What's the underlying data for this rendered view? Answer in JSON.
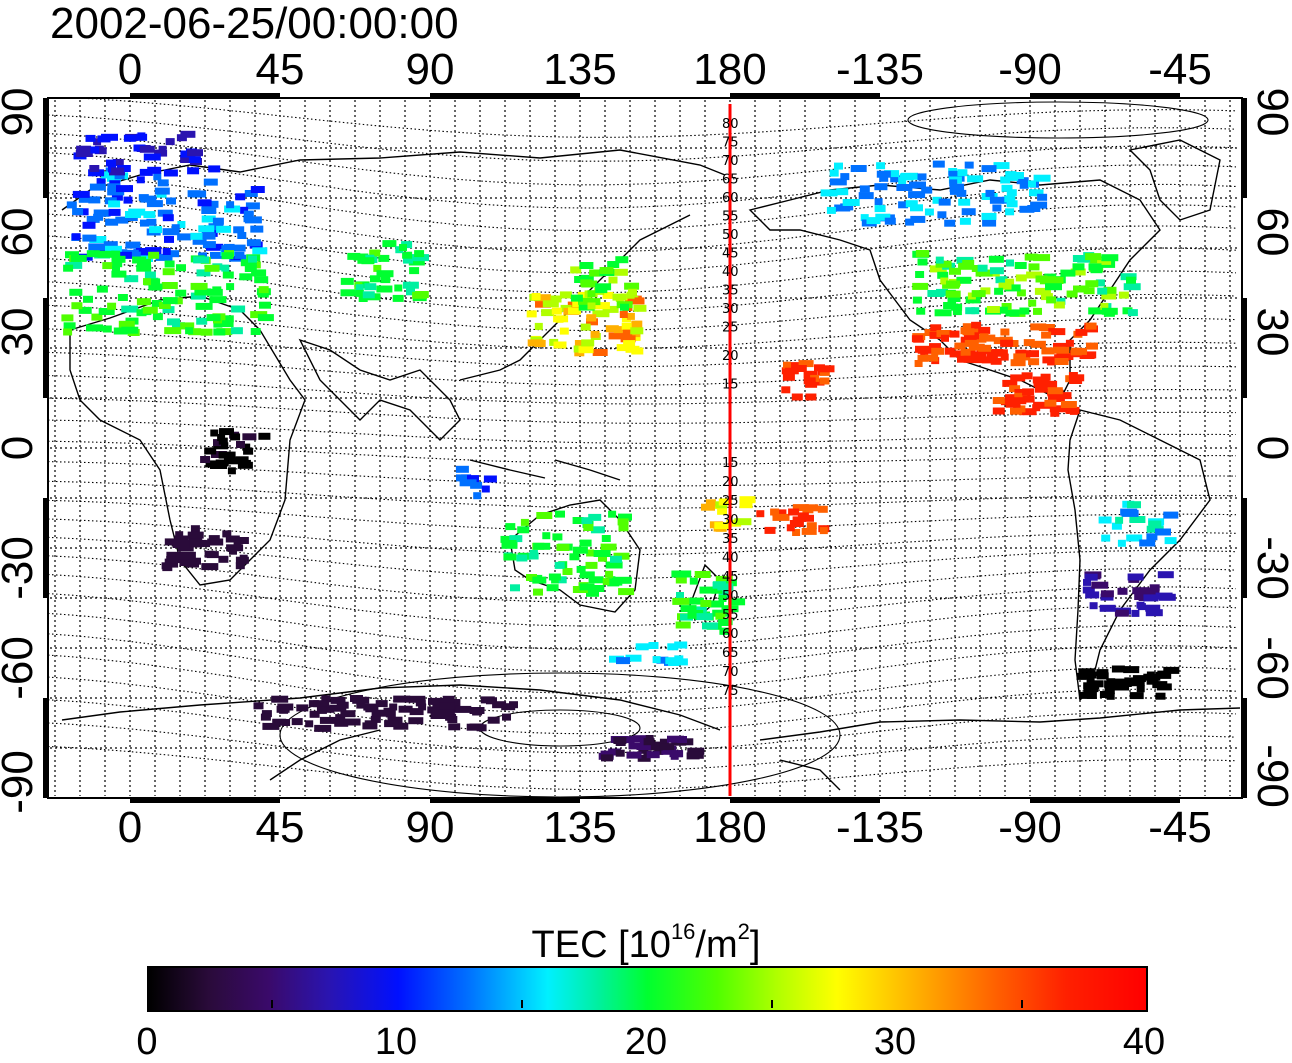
{
  "title": "2002-06-25/00:00:00",
  "axes": {
    "lon_ticks_top": [
      "0",
      "45",
      "90",
      "135",
      "180",
      "-135",
      "-90",
      "-45"
    ],
    "lon_ticks_bottom": [
      "0",
      "45",
      "90",
      "135",
      "180",
      "-135",
      "-90",
      "-45"
    ],
    "lat_ticks_left": [
      "90",
      "60",
      "30",
      "0",
      "-30",
      "-60",
      "-90"
    ],
    "lat_ticks_right": [
      "90",
      "60",
      "30",
      "0",
      "-30",
      "-60",
      "-90"
    ]
  },
  "meridian_labels": {
    "north": [
      "80",
      "75",
      "70",
      "65",
      "60",
      "55",
      "50",
      "45",
      "40",
      "35",
      "30",
      "25",
      "20",
      "15"
    ],
    "south": [
      "15",
      "20",
      "25",
      "30",
      "35",
      "40",
      "45",
      "50",
      "55",
      "60",
      "65",
      "70",
      "75"
    ]
  },
  "colorbar": {
    "label_main": "TEC  [10",
    "label_exp1": "16",
    "label_mid": "/m",
    "label_exp2": "2",
    "label_end": "]",
    "ticks": [
      "0",
      "10",
      "20",
      "30",
      "40"
    ],
    "range": [
      0,
      40
    ]
  },
  "colors": {
    "meridian_line": "#ff0000"
  }
}
